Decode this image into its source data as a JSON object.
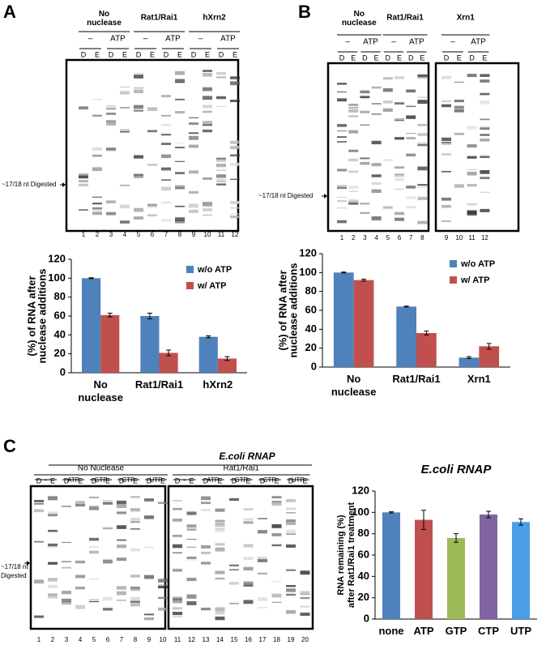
{
  "panels": [
    {
      "label": "A",
      "groups": [
        {
          "name": "No nuclease",
          "conditions": [
            "–",
            "ATP"
          ]
        },
        {
          "name": "Rat1/Rai1",
          "conditions": [
            "–",
            "ATP"
          ]
        },
        {
          "name": "hXrn2",
          "conditions": [
            "–",
            "ATP"
          ]
        }
      ],
      "lane_letters": [
        "D",
        "E"
      ],
      "lanes": [
        1,
        2,
        3,
        4,
        5,
        6,
        7,
        8,
        9,
        10,
        11,
        12
      ],
      "marker": [
        "~17/18 nt Digested"
      ]
    },
    {
      "label": "B",
      "groups": [
        {
          "name": "No nuclease",
          "conditions": [
            "–",
            "ATP"
          ]
        },
        {
          "name": "Rat1/Rai1",
          "conditions": [
            "–",
            "ATP"
          ]
        },
        {
          "name": "Xrn1",
          "conditions": [
            "–",
            "ATP"
          ]
        }
      ],
      "lane_letters": [
        "D",
        "E"
      ],
      "lanes": [
        1,
        2,
        3,
        4,
        5,
        6,
        7,
        8,
        9,
        10,
        11,
        12
      ],
      "marker": [
        "~17/18 nt Digested"
      ]
    },
    {
      "label": "C",
      "title": "E.coli RNAP",
      "groups": [
        {
          "name": "No Nuclease",
          "conditions": [
            "-",
            "ATP",
            "GTP",
            "CTP",
            "UTP"
          ]
        },
        {
          "name": "Rat1/Rai1",
          "conditions": [
            "-",
            "ATP",
            "GTP",
            "CTP",
            "UTP"
          ]
        }
      ],
      "lane_letters": [
        "D",
        "E"
      ],
      "lanes": [
        1,
        2,
        3,
        4,
        5,
        6,
        7,
        8,
        9,
        10,
        11,
        12,
        13,
        14,
        15,
        16,
        17,
        18,
        19,
        20
      ],
      "marker": [
        "~17/18 nt",
        "Digested"
      ]
    }
  ],
  "chart_data": [
    {
      "type": "bar",
      "ylabel": [
        "(%) of RNA after",
        "nuclease additions"
      ],
      "categories": [
        "No nuclease",
        "Rat1/Rai1",
        "hXrn2"
      ],
      "series": [
        {
          "name": "w/o ATP",
          "color": "#4f81bd",
          "values": [
            100,
            60,
            38
          ],
          "errors": [
            0.5,
            3,
            1
          ]
        },
        {
          "name": "w/ ATP",
          "color": "#c0504d",
          "values": [
            61,
            21,
            15
          ],
          "errors": [
            2,
            3,
            2
          ]
        }
      ],
      "ylim": [
        0,
        120
      ],
      "yticks": [
        0,
        20,
        40,
        60,
        80,
        100,
        120
      ],
      "legend": "top-right"
    },
    {
      "type": "bar",
      "ylabel": [
        "(%) of RNA after",
        "nuclease additions"
      ],
      "categories": [
        "No nuclease",
        "Rat1/Rai1",
        "Xrn1"
      ],
      "series": [
        {
          "name": "w/o ATP",
          "color": "#4f81bd",
          "values": [
            100,
            64,
            10
          ],
          "errors": [
            0.5,
            0.5,
            1
          ]
        },
        {
          "name": "w/ ATP",
          "color": "#c0504d",
          "values": [
            92,
            36,
            22
          ],
          "errors": [
            1,
            2,
            3
          ]
        }
      ],
      "ylim": [
        0,
        120
      ],
      "yticks": [
        0,
        20,
        40,
        60,
        80,
        100,
        120
      ],
      "legend": "top-right"
    },
    {
      "type": "bar",
      "title": "E.coli RNAP",
      "ylabel": [
        "RNA remaining (%)",
        "after Rat1/Rai1 treatment"
      ],
      "categories": [
        "none",
        "ATP",
        "GTP",
        "CTP",
        "UTP"
      ],
      "values": [
        100,
        93,
        76,
        98,
        91
      ],
      "errors": [
        0.5,
        9,
        4,
        3,
        3
      ],
      "colors": [
        "#4f81bd",
        "#c0504d",
        "#9bbb59",
        "#8064a2",
        "#4a9ee8"
      ],
      "ylim": [
        0,
        120
      ],
      "yticks": [
        0,
        20,
        40,
        60,
        80,
        100,
        120
      ]
    }
  ]
}
